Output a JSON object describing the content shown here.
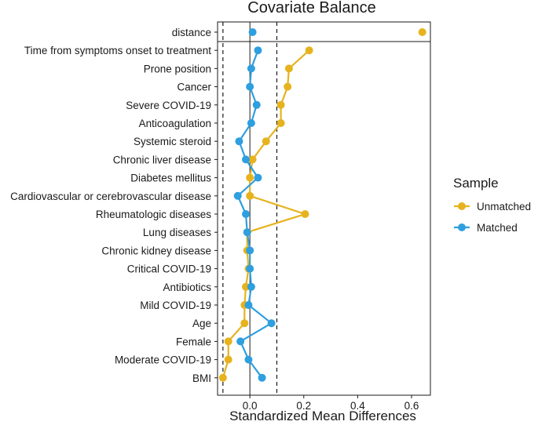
{
  "chart_data": {
    "type": "scatter",
    "title": "Covariate Balance",
    "xlabel": "Standardized Mean Differences",
    "ylabel": "",
    "xlim": [
      -0.12,
      0.67
    ],
    "xticks": [
      {
        "value": 0.0,
        "label": "0.0"
      },
      {
        "value": 0.2,
        "label": "0.2"
      },
      {
        "value": 0.4,
        "label": "0.4"
      },
      {
        "value": 0.6,
        "label": "0.6"
      }
    ],
    "reference_lines": {
      "solid": [
        0.0
      ],
      "dashed": [
        -0.1,
        0.1
      ]
    },
    "categories": [
      "distance",
      "Time from symptoms onset to treatment",
      "Prone position",
      "Cancer",
      "Severe COVID-19",
      "Anticoagulation",
      "Systemic steroid",
      "Chronic liver disease",
      "Diabetes mellitus",
      "Cardiovascular or cerebrovascular disease",
      "Rheumatologic diseases",
      "Lung diseases",
      "Chronic kidney disease",
      "Critical COVID-19",
      "Antibiotics",
      "Mild COVID-19",
      "Age",
      "Female",
      "Moderate COVID-19",
      "BMI"
    ],
    "separated_category": "distance",
    "legend": {
      "title": "Sample",
      "position": "right"
    },
    "series": [
      {
        "name": "Unmatched",
        "color": "#E6B31E",
        "values": [
          0.64,
          0.22,
          0.145,
          0.14,
          0.115,
          0.115,
          0.06,
          0.01,
          0.0,
          0.0,
          0.205,
          -0.01,
          -0.01,
          -0.005,
          -0.015,
          -0.02,
          -0.02,
          -0.08,
          -0.08,
          -0.1
        ]
      },
      {
        "name": "Matched",
        "color": "#2E9FDF",
        "values": [
          0.01,
          0.03,
          0.005,
          0.0,
          0.025,
          0.005,
          -0.04,
          -0.015,
          0.03,
          -0.045,
          -0.015,
          -0.01,
          0.0,
          0.0,
          0.005,
          -0.005,
          0.08,
          -0.035,
          -0.005,
          0.045
        ]
      }
    ]
  }
}
